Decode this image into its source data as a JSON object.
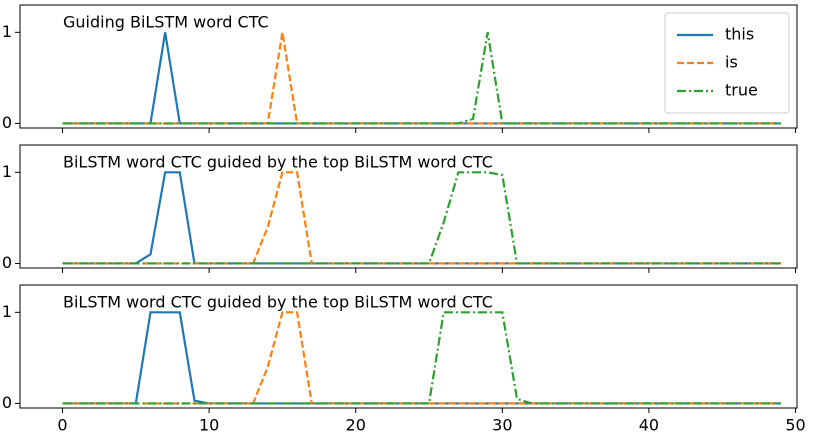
{
  "chart_data": [
    {
      "type": "line",
      "title": "Guiding BiLSTM word CTC",
      "x": [
        0,
        1,
        2,
        3,
        4,
        5,
        6,
        7,
        8,
        9,
        10,
        11,
        12,
        13,
        14,
        15,
        16,
        17,
        18,
        19,
        20,
        21,
        22,
        23,
        24,
        25,
        26,
        27,
        28,
        29,
        30,
        31,
        32,
        33,
        34,
        35,
        36,
        37,
        38,
        39,
        40,
        41,
        42,
        43,
        44,
        45,
        46,
        47,
        48,
        49
      ],
      "series": [
        {
          "name": "this",
          "color": "#1f77b4",
          "linestyle": "solid",
          "values": [
            0,
            0,
            0,
            0,
            0,
            0,
            0,
            1,
            0,
            0,
            0,
            0,
            0,
            0,
            0,
            0,
            0,
            0,
            0,
            0,
            0,
            0,
            0,
            0,
            0,
            0,
            0,
            0,
            0,
            0,
            0,
            0,
            0,
            0,
            0,
            0,
            0,
            0,
            0,
            0,
            0,
            0,
            0,
            0,
            0,
            0,
            0,
            0,
            0,
            0
          ]
        },
        {
          "name": "is",
          "color": "#ff7f0e",
          "linestyle": "dashed",
          "values": [
            0,
            0,
            0,
            0,
            0,
            0,
            0,
            0,
            0,
            0,
            0,
            0,
            0,
            0,
            0,
            1,
            0,
            0,
            0,
            0,
            0,
            0,
            0,
            0,
            0,
            0,
            0,
            0,
            0,
            0,
            0,
            0,
            0,
            0,
            0,
            0,
            0,
            0,
            0,
            0,
            0,
            0,
            0,
            0,
            0,
            0,
            0,
            0,
            0,
            0
          ]
        },
        {
          "name": "true",
          "color": "#2ca02c",
          "linestyle": "dashdot",
          "values": [
            0,
            0,
            0,
            0,
            0,
            0,
            0,
            0,
            0,
            0,
            0,
            0,
            0,
            0,
            0,
            0,
            0,
            0,
            0,
            0,
            0,
            0,
            0,
            0,
            0,
            0,
            0,
            0,
            0.05,
            1,
            0,
            0,
            0,
            0,
            0,
            0,
            0,
            0,
            0,
            0,
            0,
            0,
            0,
            0,
            0,
            0,
            0,
            0,
            0,
            0
          ]
        }
      ],
      "xlim": [
        -2.9,
        50.1
      ],
      "xticks": [
        0,
        10,
        20,
        30,
        40,
        50
      ],
      "ylim": [
        -0.05,
        1.3
      ],
      "yticks": [
        0,
        1
      ],
      "legend": "upper right"
    },
    {
      "type": "line",
      "title": "BiLSTM word CTC guided by the top BiLSTM word CTC",
      "x": [
        0,
        1,
        2,
        3,
        4,
        5,
        6,
        7,
        8,
        9,
        10,
        11,
        12,
        13,
        14,
        15,
        16,
        17,
        18,
        19,
        20,
        21,
        22,
        23,
        24,
        25,
        26,
        27,
        28,
        29,
        30,
        31,
        32,
        33,
        34,
        35,
        36,
        37,
        38,
        39,
        40,
        41,
        42,
        43,
        44,
        45,
        46,
        47,
        48,
        49
      ],
      "series": [
        {
          "name": "this",
          "color": "#1f77b4",
          "linestyle": "solid",
          "values": [
            0,
            0,
            0,
            0,
            0,
            0,
            0.1,
            1,
            1,
            0,
            0,
            0,
            0,
            0,
            0,
            0,
            0,
            0,
            0,
            0,
            0,
            0,
            0,
            0,
            0,
            0,
            0,
            0,
            0,
            0,
            0,
            0,
            0,
            0,
            0,
            0,
            0,
            0,
            0,
            0,
            0,
            0,
            0,
            0,
            0,
            0,
            0,
            0,
            0,
            0
          ]
        },
        {
          "name": "is",
          "color": "#ff7f0e",
          "linestyle": "dashed",
          "values": [
            0,
            0,
            0,
            0,
            0,
            0,
            0,
            0,
            0,
            0,
            0,
            0,
            0,
            0,
            0.4,
            1,
            1,
            0,
            0,
            0,
            0,
            0,
            0,
            0,
            0,
            0,
            0,
            0,
            0,
            0,
            0,
            0,
            0,
            0,
            0,
            0,
            0,
            0,
            0,
            0,
            0,
            0,
            0,
            0,
            0,
            0,
            0,
            0,
            0,
            0
          ]
        },
        {
          "name": "true",
          "color": "#2ca02c",
          "linestyle": "dashdot",
          "values": [
            0,
            0,
            0,
            0,
            0,
            0,
            0,
            0,
            0,
            0,
            0,
            0,
            0,
            0,
            0,
            0,
            0,
            0,
            0,
            0,
            0,
            0,
            0,
            0,
            0,
            0,
            0.45,
            1,
            1,
            1,
            0.97,
            0,
            0,
            0,
            0,
            0,
            0,
            0,
            0,
            0,
            0,
            0,
            0,
            0,
            0,
            0,
            0,
            0,
            0,
            0
          ]
        }
      ],
      "xlim": [
        -2.9,
        50.1
      ],
      "xticks": [
        0,
        10,
        20,
        30,
        40,
        50
      ],
      "ylim": [
        -0.05,
        1.3
      ],
      "yticks": [
        0,
        1
      ]
    },
    {
      "type": "line",
      "title": "BiLSTM word CTC guided by the top BiLSTM word CTC",
      "x": [
        0,
        1,
        2,
        3,
        4,
        5,
        6,
        7,
        8,
        9,
        10,
        11,
        12,
        13,
        14,
        15,
        16,
        17,
        18,
        19,
        20,
        21,
        22,
        23,
        24,
        25,
        26,
        27,
        28,
        29,
        30,
        31,
        32,
        33,
        34,
        35,
        36,
        37,
        38,
        39,
        40,
        41,
        42,
        43,
        44,
        45,
        46,
        47,
        48,
        49
      ],
      "series": [
        {
          "name": "this",
          "color": "#1f77b4",
          "linestyle": "solid",
          "values": [
            0,
            0,
            0,
            0,
            0,
            0,
            1,
            1,
            1,
            0.03,
            0,
            0,
            0,
            0,
            0,
            0,
            0,
            0,
            0,
            0,
            0,
            0,
            0,
            0,
            0,
            0,
            0,
            0,
            0,
            0,
            0,
            0,
            0,
            0,
            0,
            0,
            0,
            0,
            0,
            0,
            0,
            0,
            0,
            0,
            0,
            0,
            0,
            0,
            0,
            0
          ]
        },
        {
          "name": "is",
          "color": "#ff7f0e",
          "linestyle": "dashed",
          "values": [
            0,
            0,
            0,
            0,
            0,
            0,
            0,
            0,
            0,
            0,
            0,
            0,
            0,
            0,
            0.4,
            1,
            1,
            0,
            0,
            0,
            0,
            0,
            0,
            0,
            0,
            0,
            0,
            0,
            0,
            0,
            0,
            0,
            0,
            0,
            0,
            0,
            0,
            0,
            0,
            0,
            0,
            0,
            0,
            0,
            0,
            0,
            0,
            0,
            0,
            0
          ]
        },
        {
          "name": "true",
          "color": "#2ca02c",
          "linestyle": "dashdot",
          "values": [
            0,
            0,
            0,
            0,
            0,
            0,
            0,
            0,
            0,
            0,
            0,
            0,
            0,
            0,
            0,
            0,
            0,
            0,
            0,
            0,
            0,
            0,
            0,
            0,
            0,
            0,
            1,
            1,
            1,
            1,
            1,
            0.05,
            0,
            0,
            0,
            0,
            0,
            0,
            0,
            0,
            0,
            0,
            0,
            0,
            0,
            0,
            0,
            0,
            0,
            0
          ]
        }
      ],
      "xlim": [
        -2.9,
        50.1
      ],
      "xticks": [
        0,
        10,
        20,
        30,
        40,
        50
      ],
      "ylim": [
        -0.05,
        1.3
      ],
      "yticks": [
        0,
        1
      ],
      "xticklabels": true
    }
  ]
}
